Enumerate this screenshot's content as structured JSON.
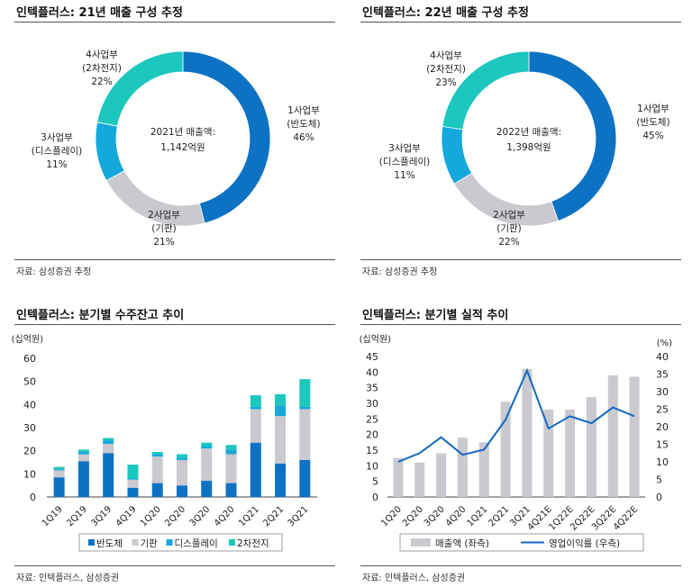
{
  "colors": {
    "blue": "#0d72c4",
    "gray": "#c9c9cf",
    "lightblue": "#14a8dc",
    "teal": "#1cc7bd",
    "line": "#1467c4"
  },
  "panels": [
    {
      "title": "인텍플러스: 21년 매출 구성 추정",
      "source": "자료: 삼성증권 추정"
    },
    {
      "title": "인텍플러스: 22년 매출 구성 추정",
      "source": "자료: 삼성증권 추정"
    },
    {
      "title": "인텍플러스: 분기별 수주잔고 추이",
      "source": "자료: 인텍플러스, 삼성증권"
    },
    {
      "title": "인텍플러스: 분기별 실적 추이",
      "source": "자료: 인텍플러스, 삼성증권"
    }
  ],
  "chart_data": [
    {
      "type": "pie",
      "donut": true,
      "center_text": [
        "2021년 매출액:",
        "1,142억원"
      ],
      "slices": [
        {
          "label": [
            "1사업부",
            "(반도체)"
          ],
          "value": 46,
          "value_label": "46%",
          "color": "#0d72c4"
        },
        {
          "label": [
            "2사업부",
            "(기판)"
          ],
          "value": 21,
          "value_label": "21%",
          "color": "#c9c9cf"
        },
        {
          "label": [
            "3사업부",
            "(디스플레이)"
          ],
          "value": 11,
          "value_label": "11%",
          "color": "#14a8dc"
        },
        {
          "label": [
            "4사업부",
            "(2차전지)"
          ],
          "value": 22,
          "value_label": "22%",
          "color": "#1cc7bd"
        }
      ]
    },
    {
      "type": "pie",
      "donut": true,
      "center_text": [
        "2022년 매출액:",
        "1,398억원"
      ],
      "slices": [
        {
          "label": [
            "1사업부",
            "(반도체)"
          ],
          "value": 45,
          "value_label": "45%",
          "color": "#0d72c4"
        },
        {
          "label": [
            "2사업부",
            "(기판)"
          ],
          "value": 22,
          "value_label": "22%",
          "color": "#c9c9cf"
        },
        {
          "label": [
            "3사업부",
            "(디스플레이)"
          ],
          "value": 11,
          "value_label": "11%",
          "color": "#14a8dc"
        },
        {
          "label": [
            "4사업부",
            "(2차전지)"
          ],
          "value": 23,
          "value_label": "23%",
          "color": "#1cc7bd"
        }
      ]
    },
    {
      "type": "bar",
      "stacked": true,
      "unit_label": "(십억원)",
      "categories": [
        "1Q19",
        "2Q19",
        "3Q19",
        "4Q19",
        "1Q20",
        "2Q20",
        "3Q20",
        "4Q20",
        "1Q21",
        "2Q21",
        "3Q21"
      ],
      "series": [
        {
          "name": "반도체",
          "color": "#0d72c4",
          "values": [
            8.5,
            15.5,
            19,
            4,
            6,
            5,
            7,
            6,
            23.5,
            14.5,
            16
          ]
        },
        {
          "name": "기판",
          "color": "#c9c9cf",
          "values": [
            3,
            3,
            4,
            3.5,
            11.5,
            11,
            14,
            12.5,
            14.5,
            20.5,
            22
          ]
        },
        {
          "name": "디스플레이",
          "color": "#14a8dc",
          "values": [
            0.5,
            1,
            1.5,
            0.5,
            1,
            1,
            1,
            2,
            1,
            4.5,
            1
          ]
        },
        {
          "name": "2차전지",
          "color": "#1cc7bd",
          "values": [
            1,
            1,
            1,
            6,
            1,
            1.5,
            1.5,
            2,
            5,
            5,
            12
          ]
        }
      ],
      "ylim": [
        0,
        60
      ],
      "yticks": [
        0,
        10,
        20,
        30,
        40,
        50,
        60
      ],
      "legend_position": "bottom"
    },
    {
      "type": "bar+line",
      "unit_left": "(십억원)",
      "unit_right": "(%)",
      "categories": [
        "1Q20",
        "2Q20",
        "3Q20",
        "4Q20",
        "1Q21",
        "2Q21",
        "3Q21",
        "4Q21E",
        "1Q22E",
        "2Q22E",
        "3Q22E",
        "4Q22E"
      ],
      "series": [
        {
          "name": "매출액 (좌측)",
          "type": "bar",
          "axis": "left",
          "color": "#c9c9cf",
          "values": [
            12.5,
            11,
            14,
            19,
            17.5,
            30.5,
            41,
            28,
            28,
            32,
            39,
            38.5
          ]
        },
        {
          "name": "영업이익률 (우측)",
          "type": "line",
          "axis": "right",
          "color": "#1467c4",
          "values": [
            10,
            12.5,
            17,
            12,
            13.5,
            22,
            36,
            19.5,
            23,
            21,
            25.5,
            23
          ]
        }
      ],
      "ylim_left": [
        0,
        45
      ],
      "yticks_left": [
        0,
        5,
        10,
        15,
        20,
        25,
        30,
        35,
        40,
        45
      ],
      "ylim_right": [
        0,
        40
      ],
      "yticks_right": [
        0,
        5,
        10,
        15,
        20,
        25,
        30,
        35,
        40
      ],
      "legend_position": "bottom"
    }
  ]
}
